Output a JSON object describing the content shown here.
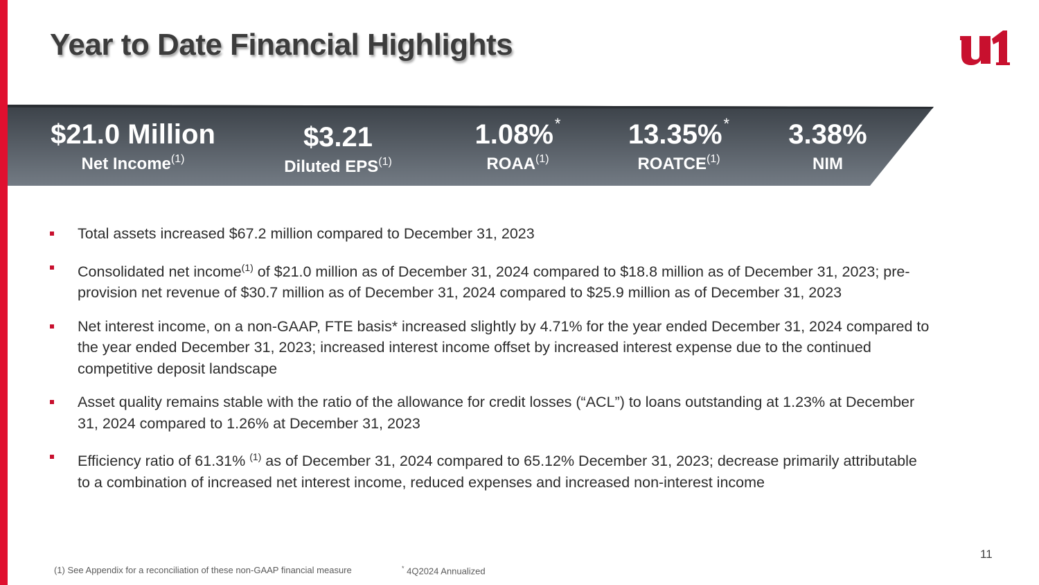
{
  "title": "Year to Date Financial Highlights",
  "logo_text": "u1",
  "colors": {
    "brand_red": "#e0102f",
    "bullet_red": "#c8102e",
    "banner_top": "#3b4148",
    "banner_bottom": "#737b84"
  },
  "metrics": [
    {
      "value": "$21.0 Million",
      "label": "Net Income",
      "label_note": "(1)",
      "value_note": ""
    },
    {
      "value": "$3.21",
      "label": "Diluted EPS",
      "label_note": "(1)",
      "value_note": ""
    },
    {
      "value": "1.08%",
      "label": "ROAA",
      "label_note": "(1)",
      "value_note": "*"
    },
    {
      "value": "13.35%",
      "label": "ROATCE",
      "label_note": "(1)",
      "value_note": "*"
    },
    {
      "value": "3.38%",
      "label": "NIM",
      "label_note": "",
      "value_note": ""
    }
  ],
  "bullets": [
    {
      "before": "Total assets increased $67.2 million compared to December 31, 2023",
      "note": "",
      "after": ""
    },
    {
      "before": "Consolidated net income",
      "note": "(1)",
      "after": " of $21.0 million as of December 31, 2024 compared to $18.8 million as of December 31, 2023; pre-provision net revenue of $30.7 million as of December 31, 2024 compared to $25.9 million as of December 31, 2023"
    },
    {
      "before": "Net interest income, on a non-GAAP, FTE basis* increased slightly by 4.71% for the year ended December 31, 2024 compared to the year ended December 31, 2023; increased interest income offset by increased interest expense due to the continued competitive deposit landscape",
      "note": "",
      "after": ""
    },
    {
      "before": "Asset quality remains stable with the ratio of the allowance for credit losses (“ACL”) to loans outstanding at 1.23% at December 31, 2024 compared to 1.26% at December 31, 2023",
      "note": "",
      "after": ""
    },
    {
      "before": "Efficiency ratio of 61.31% ",
      "note": "(1)",
      "after": " as of December 31, 2024 compared to 65.12% December 31, 2023; decrease primarily attributable to a combination of increased net interest income, reduced expenses and increased non-interest income"
    }
  ],
  "footnotes": {
    "non_gaap": "(1) See Appendix for a reconciliation of these non-GAAP financial measure",
    "annualized_mark": "*",
    "annualized": " 4Q2024 Annualized"
  },
  "page_number": "11"
}
